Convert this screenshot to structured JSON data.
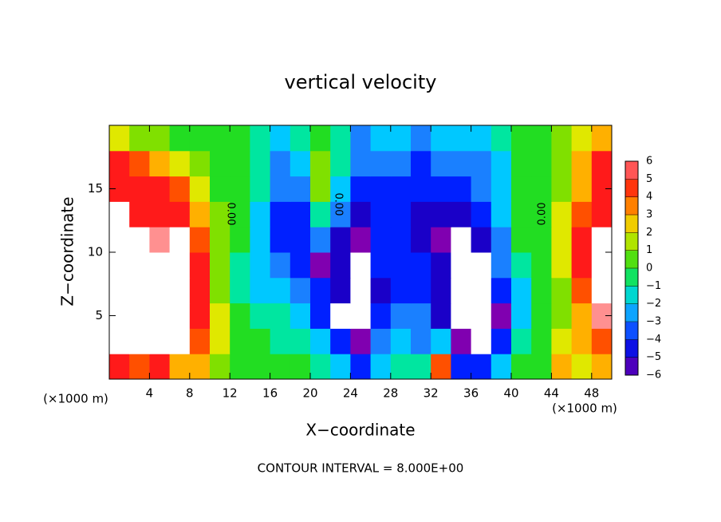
{
  "chart_data": {
    "type": "heatmap",
    "title": "vertical velocity",
    "xlabel": "X−coordinate",
    "ylabel": "Z−coordinate",
    "xunit_left": "(×1000 m)",
    "xunit_right": "(×1000 m)",
    "footnote": "CONTOUR INTERVAL = 8.000E+00",
    "annotations": [
      "0.00",
      "0.00",
      "0.00"
    ],
    "xlim": [
      0,
      50
    ],
    "ylim": [
      0,
      20
    ],
    "xticks": [
      4,
      8,
      12,
      16,
      20,
      24,
      28,
      32,
      36,
      40,
      44,
      48
    ],
    "yticks": [
      5,
      10,
      15
    ],
    "x": [
      1,
      3,
      5,
      7,
      9,
      11,
      13,
      15,
      17,
      19,
      21,
      23,
      25,
      27,
      29,
      31,
      33,
      35,
      37,
      39,
      41,
      43,
      45,
      47,
      49
    ],
    "y": [
      1,
      3,
      5,
      7,
      9,
      11,
      13,
      15,
      17,
      19
    ],
    "z": [
      [
        5,
        4,
        5,
        3,
        3,
        1,
        0,
        0,
        0,
        0,
        -1,
        -2,
        -4,
        -2,
        -1,
        -1,
        4,
        -4,
        -4,
        -2,
        0,
        0,
        3,
        2,
        3
      ],
      [
        8,
        8,
        8,
        8,
        4,
        2,
        0,
        0,
        -1,
        -1,
        -2,
        -4,
        -6,
        -3,
        -2,
        -3,
        -2,
        -6,
        8,
        -4,
        -1,
        0,
        2,
        3,
        4
      ],
      [
        8,
        8,
        8,
        8,
        5,
        2,
        0,
        -1,
        -1,
        -2,
        -4,
        8,
        8,
        -4,
        -3,
        -3,
        -5,
        8,
        8,
        -6,
        -2,
        0,
        1,
        3,
        6
      ],
      [
        8,
        8,
        8,
        8,
        5,
        1,
        -1,
        -2,
        -2,
        -3,
        -4,
        -5,
        8,
        -5,
        -4,
        -4,
        -5,
        8,
        8,
        -4,
        -2,
        0,
        1,
        4,
        8
      ],
      [
        8,
        8,
        8,
        8,
        5,
        1,
        -1,
        -2,
        -3,
        -4,
        -6,
        -5,
        8,
        -4,
        -4,
        -4,
        -5,
        8,
        8,
        -3,
        -1,
        0,
        2,
        5,
        8
      ],
      [
        8,
        8,
        6,
        8,
        4,
        1,
        0,
        -2,
        -4,
        -4,
        -3,
        -5,
        -6,
        -4,
        -4,
        -5,
        -6,
        8,
        -5,
        -3,
        0,
        0,
        2,
        5,
        8
      ],
      [
        8,
        5,
        5,
        5,
        3,
        1,
        0,
        -2,
        -4,
        -4,
        -1,
        -3,
        -5,
        -4,
        -4,
        -5,
        -5,
        -5,
        -4,
        -2,
        0,
        0,
        2,
        4,
        5
      ],
      [
        5,
        5,
        5,
        4,
        2,
        0,
        0,
        -1,
        -3,
        -3,
        1,
        -2,
        -4,
        -4,
        -4,
        -4,
        -4,
        -4,
        -3,
        -2,
        0,
        0,
        1,
        3,
        5
      ],
      [
        5,
        4,
        3,
        2,
        1,
        0,
        0,
        -1,
        -3,
        -2,
        1,
        -1,
        -3,
        -3,
        -3,
        -4,
        -3,
        -3,
        -3,
        -2,
        0,
        0,
        1,
        3,
        5
      ],
      [
        2,
        1,
        1,
        0,
        0,
        0,
        0,
        -1,
        -2,
        -1,
        0,
        -1,
        -3,
        -2,
        -2,
        -3,
        -2,
        -2,
        -2,
        -1,
        0,
        0,
        1,
        2,
        3
      ]
    ],
    "out_of_range_color": "#ffffff",
    "colorbar": {
      "ylim": [
        -6,
        6
      ],
      "yticks": [
        {
          "value": -6,
          "label": "−6"
        },
        {
          "value": -5,
          "label": "−5"
        },
        {
          "value": -4,
          "label": "−4"
        },
        {
          "value": -3,
          "label": "−3"
        },
        {
          "value": -2,
          "label": "−2"
        },
        {
          "value": -1,
          "label": "−1"
        },
        0,
        1,
        2,
        3,
        4,
        5,
        6
      ],
      "colors": [
        "#8000b0",
        "#1a00c8",
        "#0020ff",
        "#1a80ff",
        "#00c8ff",
        "#00e6a0",
        "#22dd22",
        "#80e000",
        "#e0e800",
        "#ffb000",
        "#ff5000",
        "#ff1a1a",
        "#ff9090"
      ]
    }
  }
}
